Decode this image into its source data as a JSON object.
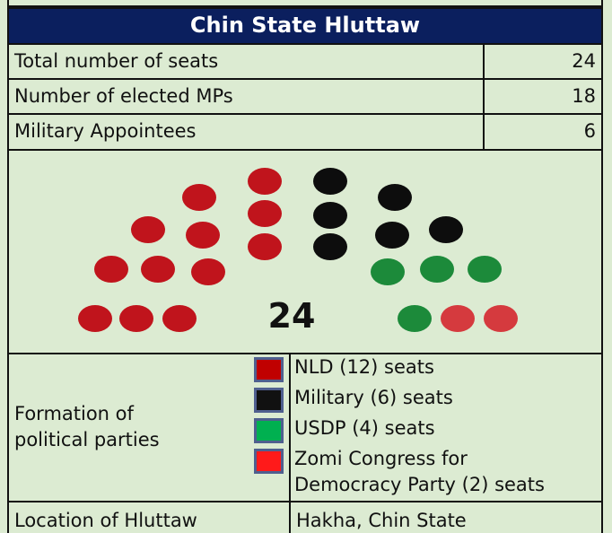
{
  "header": {
    "title": "Chin State Hluttaw"
  },
  "rows": [
    {
      "label": "Total number of seats",
      "value": "24"
    },
    {
      "label": "Number of elected MPs",
      "value": "18"
    },
    {
      "label": "Military Appointees",
      "value": "6"
    }
  ],
  "seat_chart": {
    "total_label": "24"
  },
  "parties": {
    "label": "Formation of political parties",
    "items": [
      {
        "name": "NLD (12) seats",
        "color": "#c00000"
      },
      {
        "name": "Military (6) seats",
        "color": "#111111"
      },
      {
        "name": "USDP (4) seats",
        "color": "#00b050"
      },
      {
        "name": "Zomi Congress for Democracy Party (2) seats",
        "color": "#ff1a1a"
      }
    ]
  },
  "location": {
    "label": "Location of Hluttaw",
    "value": "Hakha, Chin State"
  }
}
